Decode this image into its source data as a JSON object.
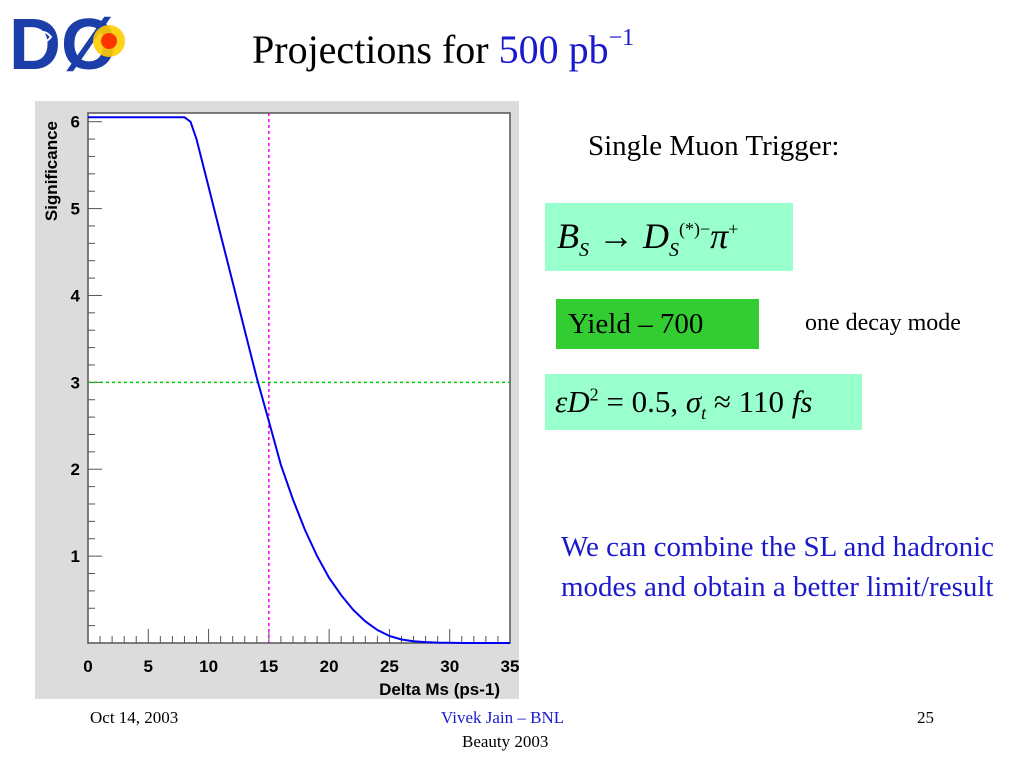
{
  "slide": {
    "title_main": "Projections for",
    "title_value": "500",
    "title_unit": "pb",
    "title_exponent": "−1",
    "trigger": "Single Muon Trigger:",
    "decay": {
      "b": "B",
      "b_sub": "S",
      "arrow": "→",
      "d": "D",
      "d_sub": "S",
      "d_sup": "(*)−",
      "pi": "π",
      "pi_sup": "+"
    },
    "yield": "Yield – 700",
    "yield_note": "one decay mode",
    "params": {
      "eps_d": "εD",
      "eps_d_sup": "2",
      "eq": "= 0.5,",
      "sigma": "σ",
      "sigma_sub": "t",
      "approx": "≈ 110",
      "fs": "fs"
    },
    "note": "We can combine the SL and hadronic modes and obtain a better limit/result"
  },
  "footer": {
    "date": "Oct 14, 2003",
    "author": "Vivek Jain – BNL",
    "conference": "Beauty 2003",
    "page": "25"
  },
  "logo": {
    "text": "DØ"
  },
  "colors": {
    "curve": "#0000ee",
    "hline": "#00cc00",
    "vline": "#ee00ee",
    "frame_bg": "#dcdcdc",
    "text_blue": "#1a1acc",
    "box_bg": "#99ffcc",
    "yield_bg": "#33cc33"
  },
  "chart_data": {
    "type": "line",
    "title": "",
    "xlabel": "Delta Ms (ps-1)",
    "ylabel": "Significance",
    "xlim": [
      0,
      35
    ],
    "ylim": [
      0,
      6.1
    ],
    "xticks": [
      0,
      5,
      10,
      15,
      20,
      25,
      30,
      35
    ],
    "yticks": [
      1,
      2,
      3,
      4,
      5,
      6
    ],
    "grid": false,
    "series": [
      {
        "x": [
          0,
          8,
          8.5,
          9,
          10,
          11,
          12,
          13,
          14,
          15,
          16,
          17,
          18,
          19,
          20,
          21,
          22,
          23,
          24,
          25,
          26,
          27,
          28,
          29,
          30,
          31,
          32,
          35
        ],
        "y": [
          6.05,
          6.05,
          6.0,
          5.8,
          5.25,
          4.7,
          4.15,
          3.6,
          3.05,
          2.55,
          2.05,
          1.65,
          1.3,
          1.0,
          0.75,
          0.55,
          0.38,
          0.25,
          0.15,
          0.08,
          0.04,
          0.02,
          0.01,
          0.005,
          0.002,
          0.0,
          0.0,
          0.0
        ]
      }
    ],
    "reference_lines": [
      {
        "axis": "y",
        "value": 3
      },
      {
        "axis": "x",
        "value": 15
      }
    ]
  }
}
